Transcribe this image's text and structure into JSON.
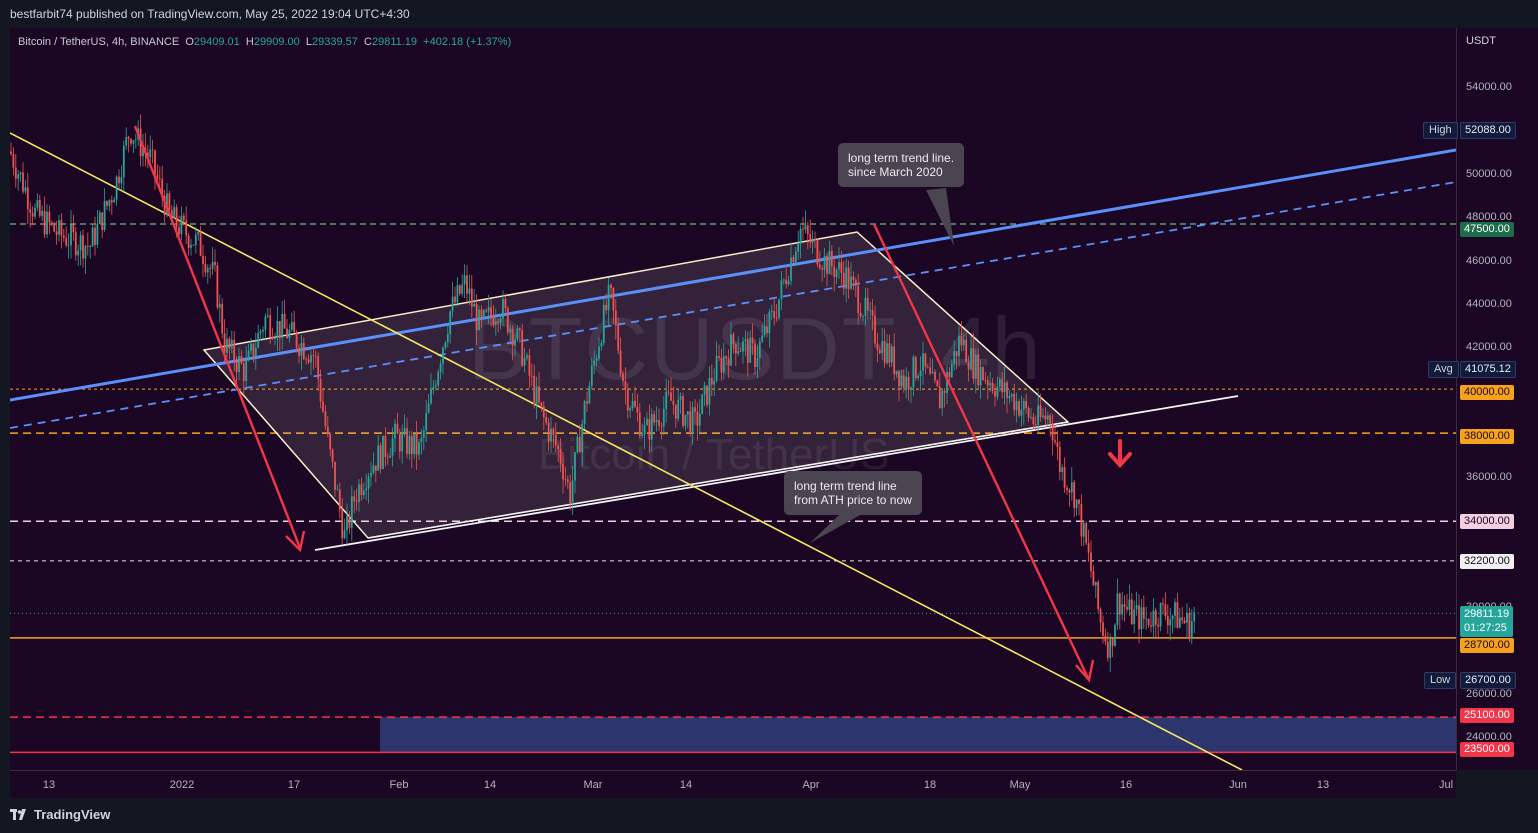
{
  "header": {
    "published": "bestfarbit74 published on TradingView.com, May 25, 2022 19:04 UTC+4:30"
  },
  "legend": {
    "symbol": "Bitcoin / TetherUS, 4h, BINANCE",
    "o_label": "O",
    "o_value": "29409.01",
    "h_label": "H",
    "h_value": "29909.00",
    "l_label": "L",
    "l_value": "29339.57",
    "c_label": "C",
    "c_value": "29811.19",
    "change": "+402.18 (+1.37%)"
  },
  "watermark": {
    "ticker": "BTCUSDT, 4h",
    "name": "Bitcoin / TetherUS"
  },
  "price_axis": {
    "currency": "USDT",
    "ticks": [
      "54000.00",
      "50000.00",
      "48000.00",
      "46000.00",
      "44000.00",
      "42000.00",
      "36000.00",
      "30000.00",
      "28000.00",
      "26000.00",
      "24000.00"
    ]
  },
  "price_tags": {
    "high_label": "High",
    "high_value": "52088.00",
    "avg_label": "Avg",
    "avg_value": "41075.12",
    "low_label": "Low",
    "low_value": "26700.00",
    "level_47500": "47500.00",
    "level_40000": "40000.00",
    "level_38000": "38000.00",
    "level_34000": "34000.00",
    "level_32200": "32200.00",
    "last_price": "29811.19",
    "countdown": "01:27:25",
    "level_28700": "28700.00",
    "level_25100": "25100.00",
    "level_23500": "23500.00"
  },
  "time_axis": {
    "ticks": [
      "13",
      "2022",
      "17",
      "Feb",
      "14",
      "Mar",
      "14",
      "Apr",
      "18",
      "May",
      "16",
      "Jun",
      "13",
      "Jul"
    ]
  },
  "callouts": {
    "top_line1": "long term trend line.",
    "top_line2": "since March 2020",
    "bottom_line1": "long term trend line",
    "bottom_line2": "from ATH price to now"
  },
  "footer": {
    "brand": "TradingView"
  },
  "colors": {
    "background": "#1b0723",
    "bull": "#26a69a",
    "bear": "#ef5350",
    "blue_trend": "#5b8ff9",
    "yellow_trend": "#f5e663",
    "orange_level": "#f7a21b",
    "red_arrow": "#f2364a",
    "support_zone": "#2f3d7a"
  },
  "chart_data": {
    "type": "candlestick",
    "title": "Bitcoin / TetherUS, 4h, BINANCE",
    "ylim": [
      22700,
      56400
    ],
    "x_ticks": [
      "13",
      "2022",
      "17",
      "Feb",
      "14",
      "Mar",
      "14",
      "Apr",
      "18",
      "May",
      "16",
      "Jun",
      "13",
      "Jul"
    ],
    "y_ticks": [
      54000,
      50000,
      48000,
      46000,
      44000,
      42000,
      36000,
      30000,
      28000,
      26000,
      24000
    ],
    "series_path": [
      [
        0,
        50800
      ],
      [
        25,
        48000
      ],
      [
        50,
        47000
      ],
      [
        80,
        46500
      ],
      [
        105,
        49200
      ],
      [
        120,
        51800
      ],
      [
        140,
        50500
      ],
      [
        160,
        47800
      ],
      [
        190,
        46500
      ],
      [
        205,
        45000
      ],
      [
        215,
        42000
      ],
      [
        235,
        40800
      ],
      [
        255,
        43200
      ],
      [
        280,
        42500
      ],
      [
        305,
        41500
      ],
      [
        318,
        37500
      ],
      [
        335,
        33200
      ],
      [
        345,
        35200
      ],
      [
        360,
        36500
      ],
      [
        385,
        37800
      ],
      [
        410,
        37200
      ],
      [
        425,
        40500
      ],
      [
        440,
        43500
      ],
      [
        455,
        44800
      ],
      [
        470,
        42800
      ],
      [
        490,
        43800
      ],
      [
        510,
        42000
      ],
      [
        530,
        39000
      ],
      [
        550,
        37000
      ],
      [
        560,
        35200
      ],
      [
        575,
        39200
      ],
      [
        590,
        42500
      ],
      [
        600,
        44300
      ],
      [
        615,
        40000
      ],
      [
        635,
        38000
      ],
      [
        660,
        39500
      ],
      [
        685,
        38400
      ],
      [
        705,
        40800
      ],
      [
        725,
        42200
      ],
      [
        745,
        41500
      ],
      [
        765,
        43500
      ],
      [
        780,
        45800
      ],
      [
        790,
        47300
      ],
      [
        800,
        46700
      ],
      [
        815,
        45800
      ],
      [
        835,
        45200
      ],
      [
        850,
        44000
      ],
      [
        865,
        42500
      ],
      [
        880,
        41500
      ],
      [
        895,
        40300
      ],
      [
        910,
        41200
      ],
      [
        930,
        39500
      ],
      [
        950,
        42300
      ],
      [
        965,
        41000
      ],
      [
        985,
        40200
      ],
      [
        1005,
        39500
      ],
      [
        1025,
        38500
      ],
      [
        1040,
        38800
      ],
      [
        1050,
        36500
      ],
      [
        1065,
        35200
      ],
      [
        1080,
        32000
      ],
      [
        1090,
        29500
      ],
      [
        1100,
        28200
      ],
      [
        1108,
        30500
      ],
      [
        1120,
        29800
      ],
      [
        1135,
        29500
      ],
      [
        1150,
        29900
      ],
      [
        1165,
        29700
      ],
      [
        1180,
        29300
      ],
      [
        1185,
        29811
      ]
    ],
    "levels": [
      47500,
      40000,
      38000,
      34000,
      32200,
      28700,
      25100,
      23500
    ],
    "support_zone": [
      23500,
      25100
    ],
    "high": 52088.0,
    "avg": 41075.12,
    "low": 26700.0,
    "last": 29811.19
  }
}
